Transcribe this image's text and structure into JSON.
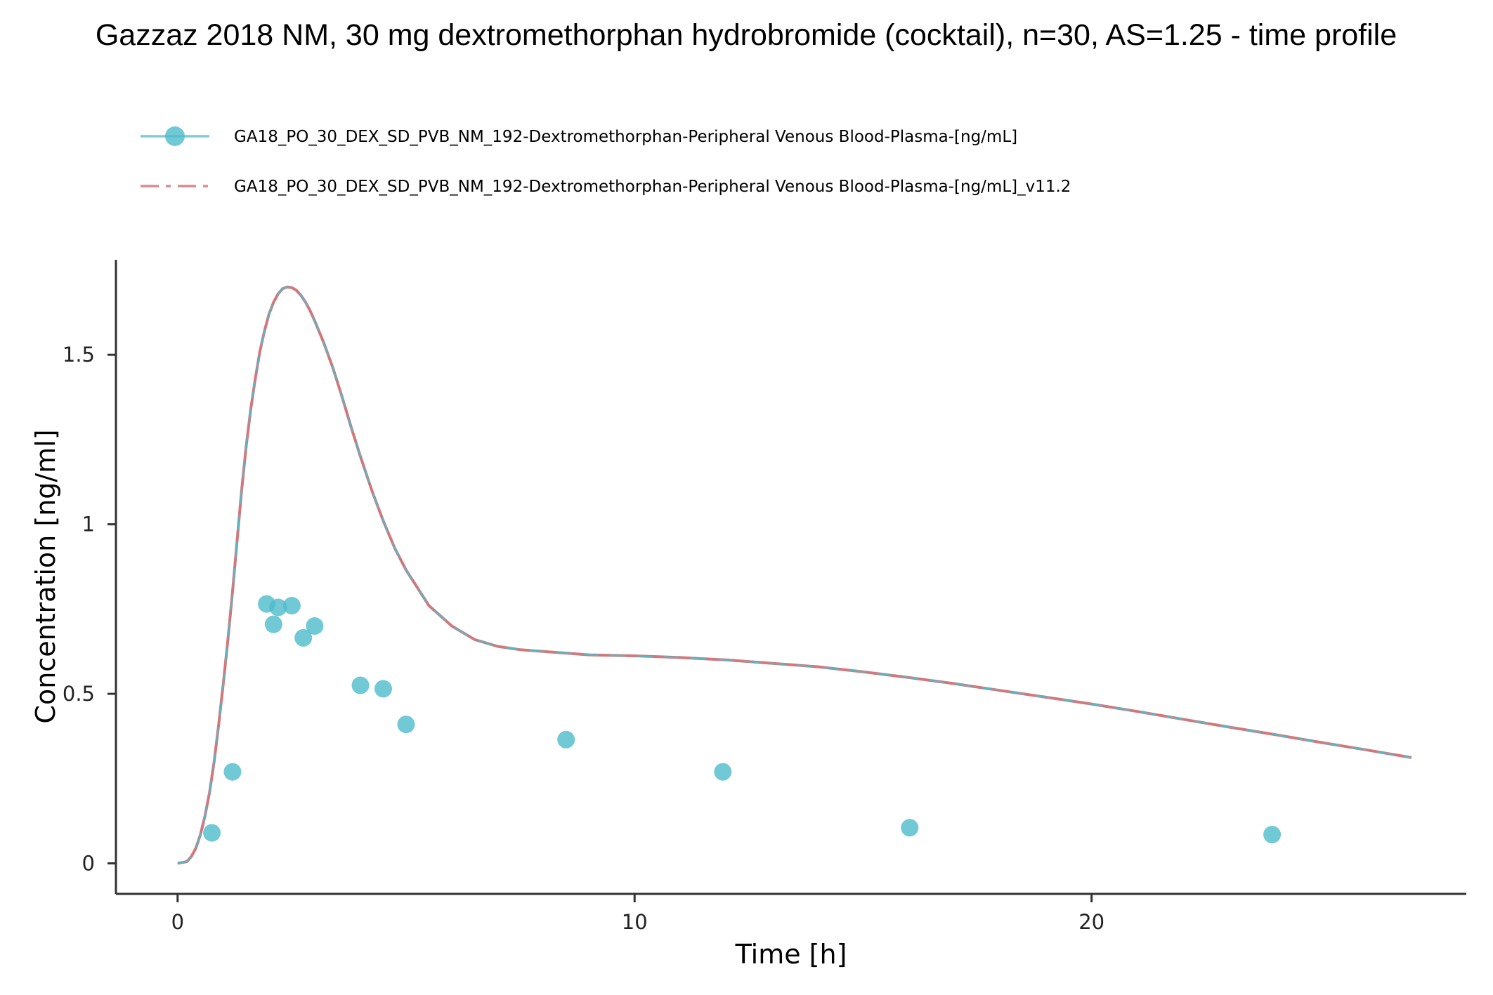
{
  "chart_data": {
    "type": "line",
    "title": "Gazzaz 2018 NM, 30 mg dextromethorphan hydrobromide (cocktail), n=30, AS=1.25 - time profile",
    "xlabel": "Time [h]",
    "ylabel": "Concentration [ng/ml]",
    "xlim": [
      -1.35,
      28.2
    ],
    "ylim": [
      -0.09,
      1.78
    ],
    "x_ticks": [
      0,
      10,
      20
    ],
    "x_tick_labels": [
      "0",
      "10",
      "20"
    ],
    "y_ticks": [
      0,
      0.5,
      1,
      1.5
    ],
    "y_tick_labels": [
      "0",
      "0.5",
      "1",
      "1.5"
    ],
    "grid": false,
    "legend_position": "top-left",
    "series": [
      {
        "name": "GA18_PO_30_DEX_SD_PVB_NM_192-Dextromethorphan-Peripheral Venous Blood-Plasma-[ng/mL]",
        "kind": "observed",
        "color": "#4DBCCC",
        "x": [
          0.75,
          1.2,
          1.95,
          2.1,
          2.2,
          2.5,
          2.75,
          3.0,
          4.0,
          4.5,
          5.0,
          8.5,
          11.93,
          16.02,
          23.95
        ],
        "y": [
          0.09,
          0.27,
          0.765,
          0.705,
          0.755,
          0.76,
          0.665,
          0.7,
          0.525,
          0.515,
          0.41,
          0.365,
          0.27,
          0.105,
          0.085
        ]
      },
      {
        "name": "GA18_PO_30_DEX_SD_PVB_NM_192-Dextromethorphan-Peripheral Venous Blood-Plasma-[ng/mL]_v11.2",
        "kind": "simulated",
        "color": "#D0787C",
        "overlay_color": "#4DBCCC",
        "x": [
          0,
          0.2,
          0.3,
          0.4,
          0.5,
          0.6,
          0.7,
          0.8,
          0.9,
          1.0,
          1.1,
          1.2,
          1.3,
          1.4,
          1.5,
          1.6,
          1.7,
          1.8,
          1.9,
          2.0,
          2.1,
          2.2,
          2.3,
          2.4,
          2.5,
          2.6,
          2.7,
          2.8,
          2.9,
          3.0,
          3.2,
          3.4,
          3.6,
          3.8,
          4.0,
          4.25,
          4.5,
          4.75,
          5.0,
          5.5,
          6.0,
          6.5,
          7.0,
          7.5,
          8.0,
          8.5,
          9.0,
          10.0,
          11.0,
          12.0,
          13.0,
          14.0,
          15.0,
          16.0,
          17.0,
          18.0,
          19.0,
          20.0,
          21.0,
          22.0,
          23.0,
          24.0,
          25.0,
          26.0,
          27.0
        ],
        "y": [
          0.0,
          0.005,
          0.02,
          0.045,
          0.085,
          0.14,
          0.21,
          0.3,
          0.41,
          0.53,
          0.66,
          0.8,
          0.95,
          1.1,
          1.23,
          1.34,
          1.43,
          1.51,
          1.57,
          1.62,
          1.655,
          1.68,
          1.695,
          1.7,
          1.698,
          1.69,
          1.675,
          1.655,
          1.63,
          1.6,
          1.535,
          1.46,
          1.375,
          1.285,
          1.2,
          1.1,
          1.01,
          0.93,
          0.865,
          0.76,
          0.7,
          0.66,
          0.64,
          0.63,
          0.625,
          0.62,
          0.615,
          0.612,
          0.607,
          0.6,
          0.59,
          0.58,
          0.565,
          0.548,
          0.53,
          0.51,
          0.49,
          0.47,
          0.448,
          0.425,
          0.402,
          0.38,
          0.357,
          0.335,
          0.312
        ]
      }
    ]
  }
}
